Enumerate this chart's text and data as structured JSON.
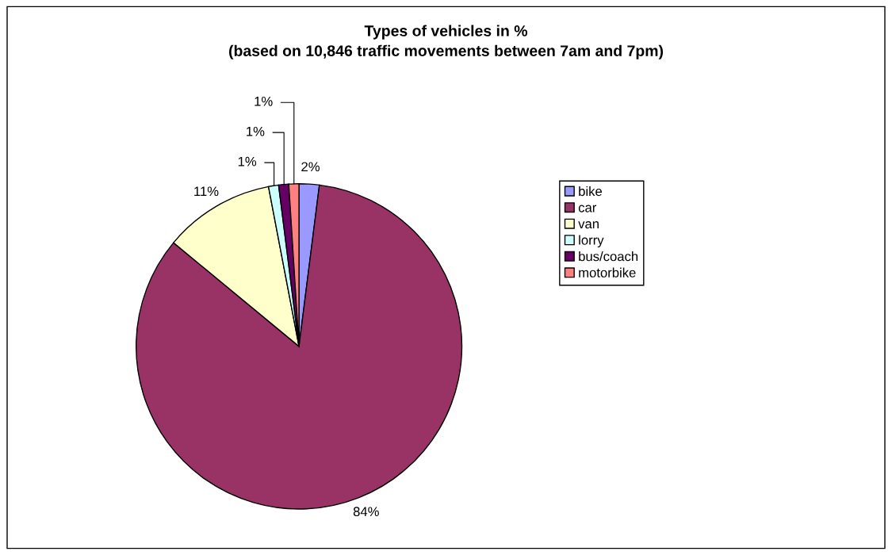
{
  "chart_data": {
    "type": "pie",
    "title": "Types of vehicles in %\n(based on 10,846 traffic movements between 7am and 7pm)",
    "categories": [
      "bike",
      "car",
      "van",
      "lorry",
      "bus/coach",
      "motorbike"
    ],
    "values": [
      2,
      84,
      11,
      1,
      1,
      1
    ],
    "value_labels": [
      "2%",
      "84%",
      "11%",
      "1%",
      "1%",
      "1%"
    ],
    "colors": [
      "#9999ff",
      "#993366",
      "#ffffcc",
      "#ccffff",
      "#660066",
      "#ff8080"
    ],
    "legend": "right"
  }
}
